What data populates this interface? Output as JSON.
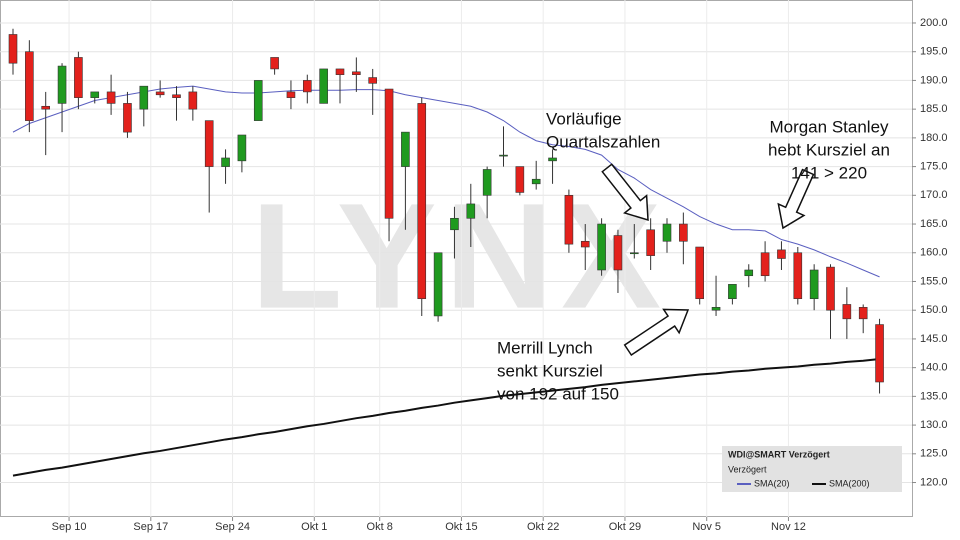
{
  "chart_data": {
    "type": "candlestick",
    "watermark": "LYNX",
    "annotations": [
      [
        "Vorläufige",
        "Quartalszahlen"
      ],
      [
        "Morgan Stanley",
        "hebt Kursziel an",
        "141 > 220"
      ],
      [
        "Merrill Lynch",
        "senkt Kursziel",
        "von 192 auf 150"
      ]
    ],
    "legend_title": "WDI@SMART Verzögert",
    "legend_subtitle": "Verzögert",
    "categories": [
      null,
      null,
      null,
      "Sep 10",
      null,
      null,
      null,
      null,
      "Sep 17",
      null,
      null,
      null,
      null,
      "Sep 24",
      null,
      null,
      null,
      null,
      "Okt 1",
      null,
      null,
      null,
      "Okt 8",
      null,
      null,
      null,
      null,
      "Okt 15",
      null,
      null,
      null,
      null,
      "Okt 22",
      null,
      null,
      null,
      null,
      "Okt 29",
      null,
      null,
      null,
      null,
      "Nov 5",
      null,
      null,
      null,
      null,
      "Nov 12",
      null,
      null,
      null,
      null,
      null,
      null
    ],
    "open": [
      198,
      195,
      185.5,
      186,
      194,
      187,
      188,
      186,
      185,
      188,
      187.5,
      188,
      183,
      175,
      176,
      183,
      194,
      188,
      190,
      186,
      192,
      191.5,
      190.5,
      188.5,
      175,
      186,
      149,
      164,
      166,
      170,
      177,
      175,
      172,
      176,
      170,
      162,
      157,
      163,
      160,
      164,
      162,
      165,
      161,
      150,
      152,
      156,
      160,
      160.5,
      160,
      152,
      157.5,
      151,
      150.5,
      147.5
    ],
    "high": [
      199,
      197,
      188,
      193,
      195,
      188,
      191,
      188,
      189,
      190,
      189,
      189,
      183,
      178,
      180,
      190,
      194,
      190,
      191,
      192,
      192,
      194,
      192,
      188.5,
      181,
      187,
      160,
      168,
      172,
      175,
      182,
      175,
      176,
      178,
      171,
      165,
      166,
      164,
      165,
      166,
      166,
      167,
      161,
      156,
      154,
      158,
      162,
      162,
      161,
      158,
      158,
      154,
      151,
      148.5
    ],
    "low": [
      191,
      181,
      177,
      181,
      185,
      186,
      184,
      180,
      182,
      187,
      183,
      183,
      167,
      172,
      174,
      183,
      191,
      185,
      186,
      186,
      186,
      188,
      184,
      162,
      164,
      149,
      148,
      159,
      161,
      166,
      175,
      170,
      171,
      172,
      160,
      157,
      156,
      153,
      159,
      157,
      160,
      158,
      151,
      149,
      151,
      154,
      155,
      157,
      151,
      150,
      145,
      145,
      146,
      135.5
    ],
    "close": [
      193,
      183,
      185,
      192.5,
      187,
      188,
      186,
      181,
      189,
      187.5,
      187,
      185,
      175,
      176.5,
      180.5,
      190,
      192,
      187,
      188,
      192,
      191,
      191,
      189.5,
      166,
      181,
      152,
      160,
      166,
      168.5,
      174.5,
      177,
      170.5,
      172.8,
      176.5,
      161.5,
      161,
      165,
      157,
      160,
      159.5,
      165,
      162,
      152,
      150.5,
      154.5,
      157,
      156,
      159,
      152,
      157,
      150,
      148.5,
      148.5,
      137.5
    ],
    "up_color": "#1f9a1f",
    "down_color": "#e3211c",
    "series": [
      {
        "name": "SMA(20)",
        "color": "#5a5fc0",
        "values": [
          181,
          182.5,
          183.5,
          184.5,
          185.5,
          186.5,
          187,
          187.5,
          188,
          188.5,
          188.8,
          189,
          188.5,
          188,
          187.8,
          187.8,
          188,
          188.2,
          188.3,
          188.3,
          188.3,
          188.4,
          188.4,
          188.2,
          187.5,
          187,
          186.5,
          186,
          185.5,
          184.5,
          183,
          181,
          179.5,
          178.8,
          178.5,
          178,
          177,
          174.5,
          173,
          171,
          169.5,
          168,
          166.3,
          165,
          164,
          164,
          163.8,
          162.3,
          161.5,
          160.5,
          159.3,
          158.2,
          157,
          155.8
        ]
      },
      {
        "name": "SMA(200)",
        "color": "#111111",
        "values": [
          121.2,
          121.7,
          122.2,
          122.6,
          123.1,
          123.6,
          124.1,
          124.6,
          125.1,
          125.5,
          126.0,
          126.5,
          127.0,
          127.5,
          127.9,
          128.4,
          128.8,
          129.3,
          129.8,
          130.2,
          130.7,
          131.2,
          131.6,
          132.1,
          132.5,
          133.0,
          133.4,
          133.9,
          134.3,
          134.7,
          135.1,
          135.4,
          135.7,
          136.0,
          136.3,
          136.6,
          137.0,
          137.3,
          137.6,
          137.9,
          138.2,
          138.5,
          138.8,
          139.0,
          139.3,
          139.5,
          139.8,
          140.0,
          140.2,
          140.5,
          140.7,
          141.0,
          141.2,
          141.5
        ]
      }
    ],
    "ylim": [
      114,
      204
    ],
    "yticks": [
      {
        "value": 120,
        "label": "120.0"
      },
      {
        "value": 125,
        "label": "125.0"
      },
      {
        "value": 130,
        "label": "130.0"
      },
      {
        "value": 135,
        "label": "135.0"
      },
      {
        "value": 140,
        "label": "140.0"
      },
      {
        "value": 145,
        "label": "145.0"
      },
      {
        "value": 150,
        "label": "150.0"
      },
      {
        "value": 155,
        "label": "155.0"
      },
      {
        "value": 160,
        "label": "160.0"
      },
      {
        "value": 165,
        "label": "165.0"
      },
      {
        "value": 170,
        "label": "170.0"
      },
      {
        "value": 175,
        "label": "175.0"
      },
      {
        "value": 180,
        "label": "180.0"
      },
      {
        "value": 185,
        "label": "185.0"
      },
      {
        "value": 190,
        "label": "190.0"
      },
      {
        "value": 195,
        "label": "195.0"
      },
      {
        "value": 200,
        "label": "200.0"
      }
    ],
    "grid": true
  }
}
